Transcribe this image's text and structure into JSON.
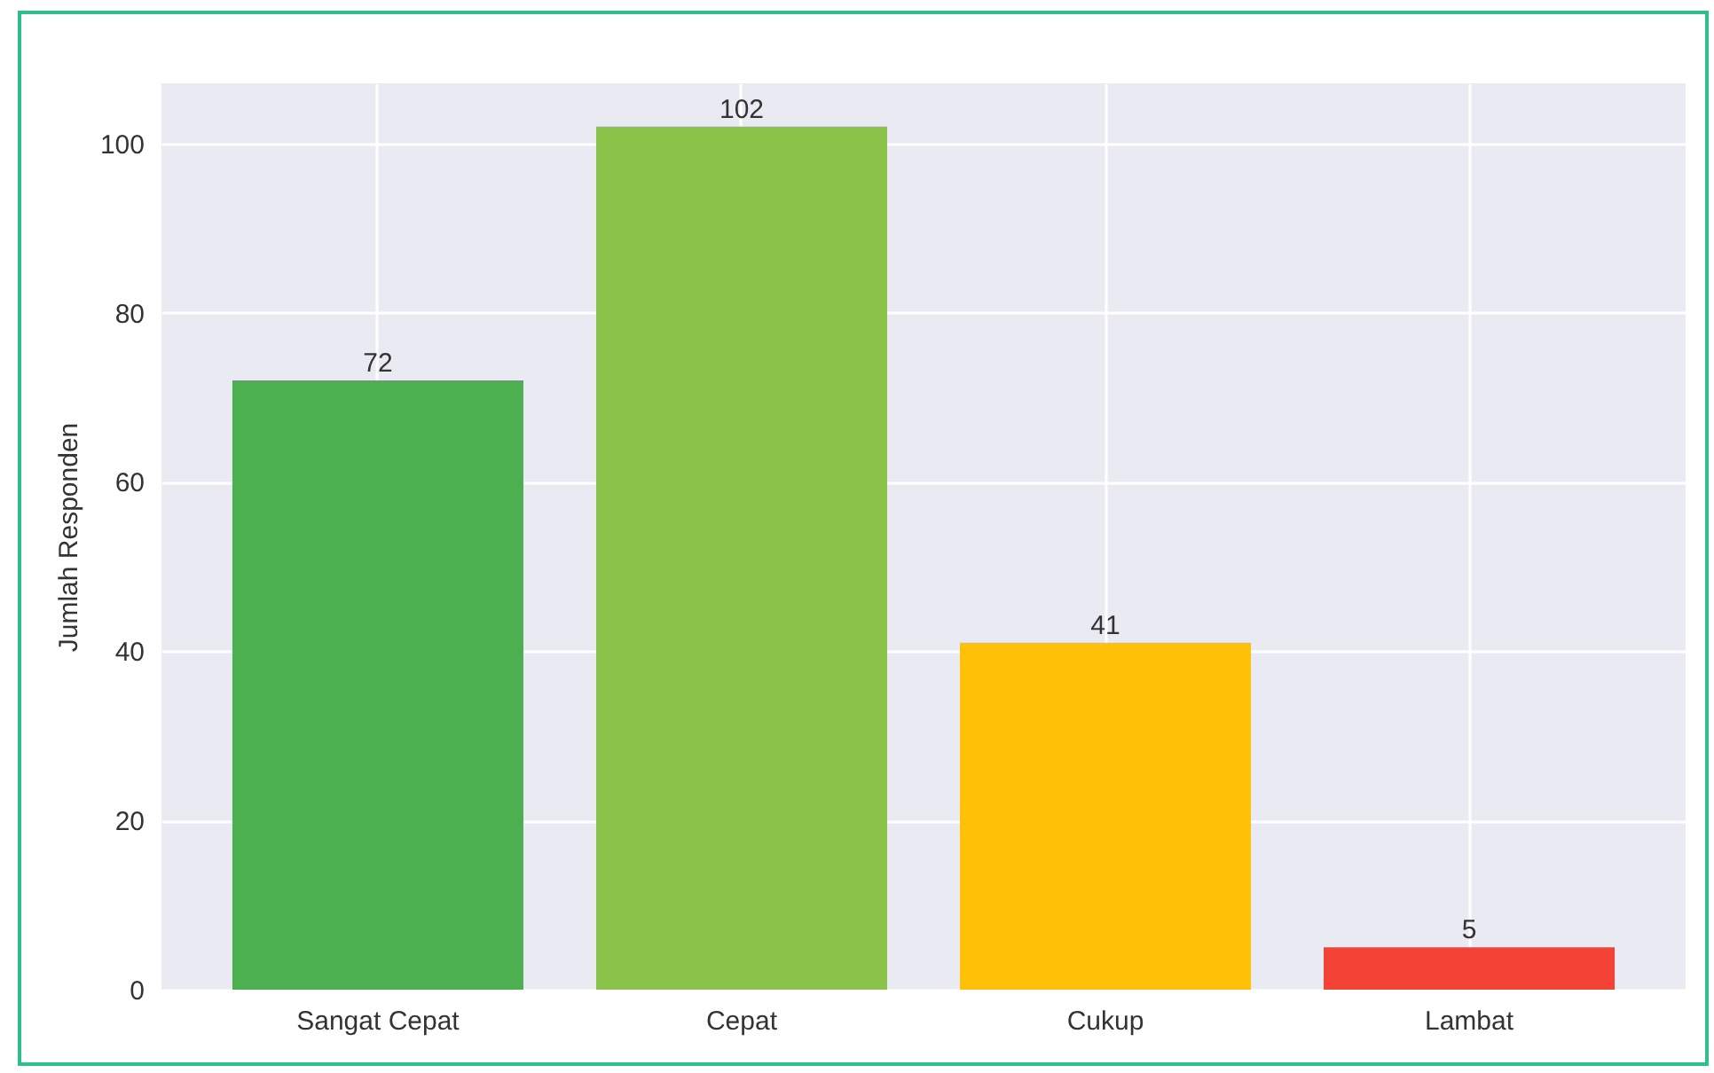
{
  "chart_data": {
    "type": "bar",
    "ylabel": "Jumlah Responden",
    "categories": [
      "Sangat Cepat",
      "Cepat",
      "Cukup",
      "Lambat"
    ],
    "values": [
      72,
      102,
      41,
      5
    ],
    "colors": [
      "#4caf50",
      "#8bc34a",
      "#ffc107",
      "#f44336"
    ],
    "ylim": [
      0,
      107.1
    ],
    "yticks": [
      0,
      20,
      40,
      60,
      80,
      100
    ],
    "grid": true,
    "data_labels": true
  }
}
